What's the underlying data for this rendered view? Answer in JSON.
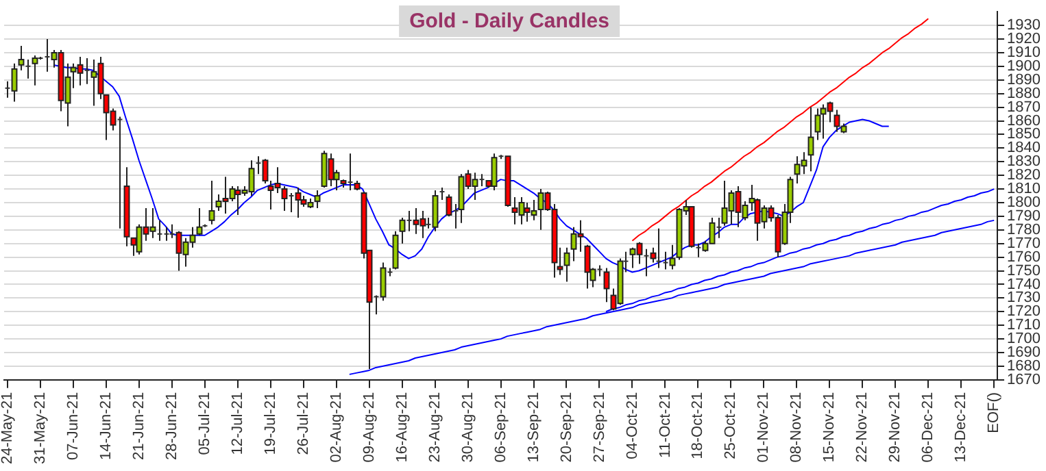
{
  "chart_data": {
    "type": "candlestick",
    "title": "Gold - Daily Candles",
    "categories": [
      "24-May-21",
      null,
      null,
      null,
      null,
      "31-May-21",
      null,
      null,
      null,
      null,
      "07-Jun-21",
      null,
      null,
      null,
      null,
      "14-Jun-21",
      null,
      null,
      null,
      null,
      "21-Jun-21",
      null,
      null,
      null,
      null,
      "28-Jun-21",
      null,
      null,
      null,
      null,
      "05-Jul-21",
      null,
      null,
      null,
      null,
      "12-Jul-21",
      null,
      null,
      null,
      null,
      "19-Jul-21",
      null,
      null,
      null,
      null,
      "26-Jul-21",
      null,
      null,
      null,
      null,
      "02-Aug-21",
      null,
      null,
      null,
      null,
      "09-Aug-21",
      null,
      null,
      null,
      null,
      "16-Aug-21",
      null,
      null,
      null,
      null,
      "23-Aug-21",
      null,
      null,
      null,
      null,
      "30-Aug-21",
      null,
      null,
      null,
      null,
      "06-Sep-21",
      null,
      null,
      null,
      null,
      "13-Sep-21",
      null,
      null,
      null,
      null,
      "20-Sep-21",
      null,
      null,
      null,
      null,
      "27-Sep-21",
      null,
      null,
      null,
      null,
      "04-Oct-21",
      null,
      null,
      null,
      null,
      "11-Oct-21",
      null,
      null,
      null,
      null,
      "18-Oct-21",
      null,
      null,
      null,
      null,
      "25-Oct-21",
      null,
      null,
      null,
      null,
      "01-Nov-21",
      null,
      null,
      null,
      null,
      "08-Nov-21",
      null,
      null,
      null,
      null,
      "15-Nov-21",
      null,
      null,
      null,
      null,
      "22-Nov-21",
      null,
      null,
      null,
      null,
      "29-Nov-21",
      null,
      null,
      null,
      null,
      "06-Dec-21",
      null,
      null,
      null,
      null,
      "13-Dec-21",
      null,
      null,
      null,
      null,
      "EOF()"
    ],
    "ohlc": [
      [
        1884,
        1889,
        1877,
        1884
      ],
      [
        1882,
        1902,
        1874,
        1898
      ],
      [
        1901,
        1915,
        1897,
        1905
      ],
      [
        1900,
        1905,
        1891,
        1900
      ],
      [
        1902,
        1908,
        1886,
        1906
      ],
      [
        1906,
        1907,
        1905,
        1906
      ],
      [
        1907,
        1920,
        1896,
        1907
      ],
      [
        1905,
        1912,
        1899,
        1910
      ],
      [
        1910,
        1912,
        1867,
        1875
      ],
      [
        1873,
        1902,
        1856,
        1892
      ],
      [
        1896,
        1902,
        1884,
        1899
      ],
      [
        1901,
        1907,
        1886,
        1895
      ],
      [
        1897,
        1906,
        1887,
        1897
      ],
      [
        1892,
        1905,
        1871,
        1896
      ],
      [
        1902,
        1907,
        1876,
        1880
      ],
      [
        1879,
        1879,
        1846,
        1866
      ],
      [
        1867,
        1869,
        1853,
        1857
      ],
      [
        1861,
        1863,
        1781,
        1861
      ],
      [
        1812,
        1826,
        1768,
        1775
      ],
      [
        1774,
        1774,
        1761,
        1769
      ],
      [
        1764,
        1784,
        1762,
        1782
      ],
      [
        1782,
        1796,
        1772,
        1777
      ],
      [
        1779,
        1796,
        1774,
        1782
      ],
      [
        1777,
        1787,
        1772,
        1777
      ],
      [
        1777,
        1782,
        1772,
        1777
      ],
      [
        1777,
        1784,
        1774,
        1777
      ],
      [
        1778,
        1779,
        1750,
        1763
      ],
      [
        1762,
        1774,
        1753,
        1771
      ],
      [
        1771,
        1782,
        1767,
        1776
      ],
      [
        1777,
        1796,
        1776,
        1782
      ],
      [
        1783,
        1784,
        1782,
        1783
      ],
      [
        1787,
        1816,
        1784,
        1794
      ],
      [
        1797,
        1806,
        1794,
        1801
      ],
      [
        1803,
        1819,
        1792,
        1801
      ],
      [
        1803,
        1812,
        1801,
        1810
      ],
      [
        1809,
        1812,
        1791,
        1806
      ],
      [
        1807,
        1812,
        1805,
        1809
      ],
      [
        1808,
        1831,
        1805,
        1825
      ],
      [
        1829,
        1834,
        1821,
        1829
      ],
      [
        1831,
        1832,
        1814,
        1816
      ],
      [
        1812,
        1816,
        1795,
        1809
      ],
      [
        1814,
        1826,
        1807,
        1811
      ],
      [
        1810,
        1812,
        1794,
        1803
      ],
      [
        1805,
        1807,
        1793,
        1805
      ],
      [
        1807,
        1811,
        1789,
        1802
      ],
      [
        1802,
        1805,
        1797,
        1799
      ],
      [
        1797,
        1803,
        1796,
        1800
      ],
      [
        1801,
        1809,
        1796,
        1805
      ],
      [
        1812,
        1838,
        1811,
        1836
      ],
      [
        1832,
        1836,
        1812,
        1817
      ],
      [
        1817,
        1824,
        1809,
        1822
      ],
      [
        1816,
        1817,
        1811,
        1814
      ],
      [
        1815,
        1836,
        1809,
        1815
      ],
      [
        1814,
        1816,
        1809,
        1810
      ],
      [
        1807,
        1808,
        1759,
        1763
      ],
      [
        1765,
        1765,
        1678,
        1727
      ],
      [
        1731,
        1732,
        1718,
        1731
      ],
      [
        1731,
        1756,
        1728,
        1752
      ],
      [
        1749,
        1752,
        1746,
        1749
      ],
      [
        1752,
        1779,
        1751,
        1776
      ],
      [
        1779,
        1789,
        1770,
        1787
      ],
      [
        1787,
        1794,
        1779,
        1787
      ],
      [
        1787,
        1796,
        1777,
        1784
      ],
      [
        1788,
        1794,
        1774,
        1783
      ],
      [
        1784,
        1789,
        1781,
        1784
      ],
      [
        1782,
        1809,
        1779,
        1805
      ],
      [
        1808,
        1811,
        1802,
        1808
      ],
      [
        1804,
        1806,
        1790,
        1791
      ],
      [
        1794,
        1799,
        1781,
        1794
      ],
      [
        1795,
        1821,
        1785,
        1819
      ],
      [
        1821,
        1824,
        1810,
        1812
      ],
      [
        1812,
        1822,
        1802,
        1817
      ],
      [
        1817,
        1821,
        1812,
        1817
      ],
      [
        1816,
        1816,
        1811,
        1812
      ],
      [
        1812,
        1836,
        1809,
        1833
      ],
      [
        1834,
        1835,
        1832,
        1834
      ],
      [
        1834,
        1834,
        1797,
        1798
      ],
      [
        1796,
        1804,
        1784,
        1793
      ],
      [
        1791,
        1804,
        1784,
        1800
      ],
      [
        1796,
        1800,
        1786,
        1793
      ],
      [
        1791,
        1802,
        1787,
        1794
      ],
      [
        1795,
        1810,
        1780,
        1807
      ],
      [
        1807,
        1808,
        1794,
        1795
      ],
      [
        1795,
        1799,
        1745,
        1756
      ],
      [
        1753,
        1767,
        1747,
        1751
      ],
      [
        1754,
        1767,
        1742,
        1763
      ],
      [
        1766,
        1782,
        1757,
        1777
      ],
      [
        1777,
        1787,
        1764,
        1775
      ],
      [
        1768,
        1769,
        1737,
        1749
      ],
      [
        1743,
        1752,
        1738,
        1751
      ],
      [
        1751,
        1754,
        1746,
        1751
      ],
      [
        1749,
        1752,
        1727,
        1737
      ],
      [
        1732,
        1737,
        1721,
        1722
      ],
      [
        1726,
        1759,
        1725,
        1757
      ],
      [
        1757,
        1764,
        1749,
        1757
      ],
      [
        1762,
        1767,
        1752,
        1766
      ],
      [
        1770,
        1771,
        1755,
        1762
      ],
      [
        1761,
        1766,
        1746,
        1761
      ],
      [
        1763,
        1767,
        1756,
        1759
      ],
      [
        1757,
        1781,
        1752,
        1757
      ],
      [
        1756,
        1764,
        1751,
        1756
      ],
      [
        1754,
        1769,
        1751,
        1759
      ],
      [
        1760,
        1796,
        1758,
        1795
      ],
      [
        1794,
        1802,
        1791,
        1797
      ],
      [
        1797,
        1797,
        1767,
        1768
      ],
      [
        1767,
        1770,
        1760,
        1767
      ],
      [
        1765,
        1772,
        1764,
        1770
      ],
      [
        1770,
        1789,
        1770,
        1785
      ],
      [
        1782,
        1789,
        1774,
        1782
      ],
      [
        1785,
        1816,
        1783,
        1796
      ],
      [
        1794,
        1809,
        1784,
        1807
      ],
      [
        1808,
        1812,
        1782,
        1793
      ],
      [
        1789,
        1801,
        1787,
        1798
      ],
      [
        1800,
        1813,
        1794,
        1803
      ],
      [
        1802,
        1803,
        1772,
        1785
      ],
      [
        1786,
        1798,
        1781,
        1796
      ],
      [
        1796,
        1798,
        1786,
        1789
      ],
      [
        1789,
        1791,
        1760,
        1764
      ],
      [
        1770,
        1799,
        1769,
        1793
      ],
      [
        1793,
        1819,
        1785,
        1817
      ],
      [
        1821,
        1834,
        1814,
        1828
      ],
      [
        1827,
        1837,
        1821,
        1831
      ],
      [
        1835,
        1870,
        1823,
        1848
      ],
      [
        1852,
        1869,
        1846,
        1864
      ],
      [
        1865,
        1872,
        1847,
        1869
      ],
      [
        1873,
        1874,
        1859,
        1867
      ],
      [
        1864,
        1868,
        1852,
        1856
      ],
      [
        1852,
        1858,
        1851,
        1856
      ],
      null,
      null,
      null,
      null,
      null,
      null,
      null,
      null,
      null,
      null,
      null,
      null,
      null,
      null,
      null,
      null,
      null,
      null,
      null,
      null,
      null,
      null,
      null
    ],
    "colors": [
      "#333333",
      "#99cc00",
      "#99cc00",
      "#333333",
      "#99cc00",
      "#333333",
      "#333333",
      "#99cc00",
      "#ff0000",
      "#99cc00",
      "#99cc00",
      "#ff0000",
      "#333333",
      "#99cc00",
      "#ff0000",
      "#ff0000",
      "#ff0000",
      "#333333",
      "#ff0000",
      "#ff0000",
      "#99cc00",
      "#ff0000",
      "#99cc00",
      "#333333",
      "#333333",
      "#333333",
      "#ff0000",
      "#99cc00",
      "#99cc00",
      "#99cc00",
      "#333333",
      "#99cc00",
      "#99cc00",
      "#ff0000",
      "#99cc00",
      "#ff0000",
      "#99cc00",
      "#99cc00",
      "#333333",
      "#ff0000",
      "#ff0000",
      "#ff0000",
      "#ff0000",
      "#333333",
      "#ff0000",
      "#ff0000",
      "#99cc00",
      "#99cc00",
      "#99cc00",
      "#ff0000",
      "#99cc00",
      "#ff0000",
      "#333333",
      "#ff0000",
      "#ff0000",
      "#ff0000",
      "#333333",
      "#99cc00",
      "#333333",
      "#99cc00",
      "#99cc00",
      "#333333",
      "#ff0000",
      "#ff0000",
      "#333333",
      "#99cc00",
      "#333333",
      "#ff0000",
      "#333333",
      "#99cc00",
      "#ff0000",
      "#99cc00",
      "#333333",
      "#ff0000",
      "#99cc00",
      "#333333",
      "#ff0000",
      "#ff0000",
      "#99cc00",
      "#ff0000",
      "#99cc00",
      "#99cc00",
      "#ff0000",
      "#ff0000",
      "#ff0000",
      "#99cc00",
      "#99cc00",
      "#ff0000",
      "#ff0000",
      "#99cc00",
      "#333333",
      "#ff0000",
      "#ff0000",
      "#99cc00",
      "#333333",
      "#99cc00",
      "#ff0000",
      "#333333",
      "#ff0000",
      "#333333",
      "#333333",
      "#99cc00",
      "#99cc00",
      "#99cc00",
      "#ff0000",
      "#333333",
      "#99cc00",
      "#99cc00",
      "#333333",
      "#99cc00",
      "#99cc00",
      "#ff0000",
      "#99cc00",
      "#99cc00",
      "#ff0000",
      "#99cc00",
      "#ff0000",
      "#ff0000",
      "#99cc00",
      "#99cc00",
      "#99cc00",
      "#99cc00",
      "#99cc00",
      "#99cc00",
      "#99cc00",
      "#ff0000",
      "#ff0000",
      "#99cc00",
      null,
      null,
      null,
      null,
      null,
      null,
      null,
      null,
      null,
      null,
      null,
      null,
      null,
      null,
      null,
      null,
      null,
      null,
      null,
      null,
      null,
      null,
      null
    ],
    "series": [
      {
        "type": "line",
        "color": "#0000ff",
        "values": [
          null,
          null,
          null,
          null,
          null,
          null,
          null,
          1901,
          1900,
          1899,
          1899,
          1898,
          1898,
          1897,
          1893,
          1889,
          1885,
          1878,
          1862,
          1847,
          1831,
          1817,
          1803,
          1788,
          1783,
          1777,
          1776,
          1776,
          1776,
          1776,
          1776,
          1779,
          1782,
          1786,
          1791,
          1795,
          1800,
          1804,
          1809,
          1811,
          1813,
          1814,
          1813,
          1812,
          1811,
          1808,
          1806,
          1804,
          1807,
          1809,
          1811,
          1813,
          1813,
          1813,
          1810,
          1799,
          1788,
          1779,
          1769,
          1766,
          1762,
          1759,
          1761,
          1766,
          1775,
          1782,
          1788,
          1792,
          1794,
          1797,
          1802,
          1807,
          1809,
          1811,
          1814,
          1817,
          1816,
          1816,
          1813,
          1810,
          1807,
          1803,
          1800,
          1795,
          1788,
          1783,
          1780,
          1777,
          1774,
          1769,
          1764,
          1759,
          1756,
          1754,
          1751,
          1749,
          1750,
          1752,
          1754,
          1756,
          1758,
          1760,
          1764,
          1767,
          1769,
          1769,
          1771,
          1775,
          1778,
          1782,
          1784,
          1784,
          1789,
          1792,
          1793,
          1794,
          1793,
          1792,
          1790,
          1793,
          1797,
          1800,
          1812,
          1824,
          1841,
          1848,
          1853,
          1856,
          1859,
          1860,
          1861,
          1860,
          1858,
          1856,
          1856,
          null,
          null,
          null,
          null,
          null,
          null,
          null,
          null,
          null,
          null,
          null,
          null,
          null,
          null,
          null,
          null
        ]
      },
      {
        "type": "line",
        "color": "#ff0000",
        "values": [
          null,
          null,
          null,
          null,
          null,
          null,
          null,
          null,
          null,
          null,
          null,
          null,
          null,
          null,
          null,
          null,
          null,
          null,
          null,
          null,
          null,
          null,
          null,
          null,
          null,
          null,
          null,
          null,
          null,
          null,
          null,
          null,
          null,
          null,
          null,
          null,
          null,
          null,
          null,
          null,
          null,
          null,
          null,
          null,
          null,
          null,
          null,
          null,
          null,
          null,
          null,
          null,
          null,
          null,
          null,
          null,
          null,
          null,
          null,
          null,
          null,
          null,
          null,
          null,
          null,
          null,
          null,
          null,
          null,
          null,
          null,
          null,
          null,
          null,
          null,
          null,
          null,
          null,
          null,
          null,
          null,
          null,
          null,
          null,
          null,
          null,
          null,
          null,
          null,
          null,
          null,
          null,
          null,
          null,
          null,
          1772,
          1776,
          1779,
          1783,
          1786,
          1790,
          1794,
          1797,
          1801,
          1805,
          1808,
          1812,
          1815,
          1819,
          1823,
          1826,
          1830,
          1834,
          1837,
          1841,
          1844,
          1848,
          1852,
          1855,
          1859,
          1863,
          1866,
          1870,
          1873,
          1877,
          1881,
          1884,
          1888,
          1892,
          1895,
          1899,
          1902,
          1906,
          1910,
          1913,
          1917,
          1921,
          1924,
          1928,
          1931,
          1935,
          null,
          null,
          null,
          null,
          null,
          null,
          null,
          null,
          null,
          null
        ]
      },
      {
        "type": "line",
        "color": "#0000ff",
        "values": [
          null,
          null,
          null,
          null,
          null,
          null,
          null,
          null,
          null,
          null,
          null,
          null,
          null,
          null,
          null,
          null,
          null,
          null,
          null,
          null,
          null,
          null,
          null,
          null,
          null,
          null,
          null,
          null,
          null,
          null,
          null,
          null,
          null,
          null,
          null,
          null,
          null,
          null,
          null,
          null,
          null,
          null,
          null,
          null,
          null,
          null,
          null,
          null,
          null,
          null,
          null,
          null,
          1674,
          1675,
          1676,
          1677,
          1679,
          1680,
          1681,
          1682,
          1683,
          1684,
          1686,
          1687,
          1688,
          1689,
          1690,
          1691,
          1692,
          1694,
          1695,
          1696,
          1697,
          1698,
          1699,
          1700,
          1702,
          1703,
          1704,
          1705,
          1706,
          1707,
          1709,
          1710,
          1711,
          1712,
          1713,
          1714,
          1715,
          1717,
          1718,
          1719,
          1720,
          1721,
          1722,
          1723,
          1725,
          1726,
          1727,
          1728,
          1729,
          1730,
          1732,
          1733,
          1734,
          1735,
          1736,
          1737,
          1738,
          1740,
          1741,
          1742,
          1743,
          1744,
          1745,
          1746,
          1748,
          1749,
          1750,
          1751,
          1752,
          1753,
          1755,
          1756,
          1757,
          1758,
          1759,
          1760,
          1761,
          1763,
          1764,
          1765,
          1766,
          1767,
          1768,
          1769,
          1771,
          1772,
          1773,
          1774,
          1775,
          1776,
          1778,
          1779,
          1780,
          1781,
          1782,
          1783,
          1784,
          1786,
          1787
        ]
      },
      {
        "type": "line",
        "color": "#0000ff",
        "values": [
          null,
          null,
          null,
          null,
          null,
          null,
          null,
          null,
          null,
          null,
          null,
          null,
          null,
          null,
          null,
          null,
          null,
          null,
          null,
          null,
          null,
          null,
          null,
          null,
          null,
          null,
          null,
          null,
          null,
          null,
          null,
          null,
          null,
          null,
          null,
          null,
          null,
          null,
          null,
          null,
          null,
          null,
          null,
          null,
          null,
          null,
          null,
          null,
          null,
          null,
          null,
          null,
          null,
          null,
          null,
          null,
          null,
          null,
          null,
          null,
          null,
          null,
          null,
          null,
          null,
          null,
          null,
          null,
          null,
          null,
          null,
          null,
          null,
          null,
          null,
          null,
          null,
          null,
          null,
          null,
          null,
          null,
          null,
          null,
          null,
          null,
          null,
          null,
          null,
          null,
          null,
          1720,
          1722,
          1723,
          1725,
          1726,
          1728,
          1729,
          1731,
          1732,
          1734,
          1735,
          1737,
          1738,
          1740,
          1741,
          1743,
          1744,
          1746,
          1747,
          1749,
          1750,
          1752,
          1753,
          1755,
          1756,
          1758,
          1760,
          1761,
          1763,
          1764,
          1766,
          1767,
          1769,
          1770,
          1772,
          1773,
          1775,
          1776,
          1778,
          1779,
          1781,
          1782,
          1784,
          1785,
          1787,
          1788,
          1790,
          1791,
          1793,
          1794,
          1796,
          1798,
          1799,
          1801,
          1802,
          1804,
          1805,
          1807,
          1808,
          1810
        ]
      }
    ],
    "ylim": [
      1670,
      1940
    ],
    "yticks": [
      1670,
      1680,
      1690,
      1700,
      1710,
      1720,
      1730,
      1740,
      1750,
      1760,
      1770,
      1780,
      1790,
      1800,
      1810,
      1820,
      1830,
      1840,
      1850,
      1860,
      1870,
      1880,
      1890,
      1900,
      1910,
      1920,
      1930
    ],
    "grid": "y",
    "legend": false
  }
}
